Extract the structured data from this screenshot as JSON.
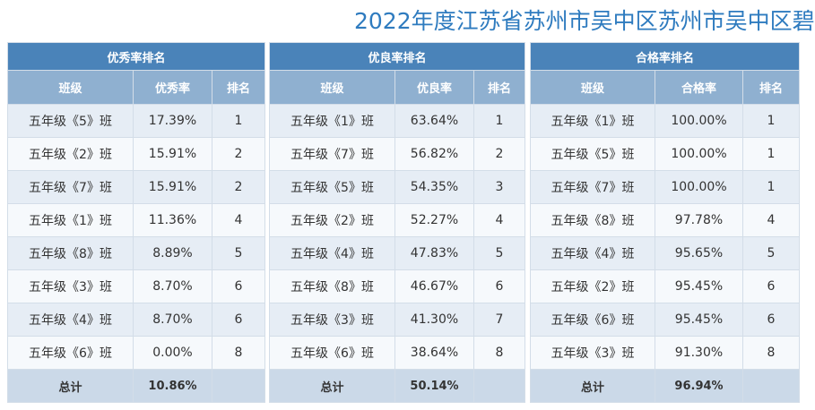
{
  "title": "2022年度江苏省苏州市吴中区苏州市吴中区碧",
  "tables": [
    {
      "header": "优秀率排名",
      "columns": [
        "班级",
        "优秀率",
        "排名"
      ],
      "rows": [
        [
          "五年级《5》班",
          "17.39%",
          "1"
        ],
        [
          "五年级《2》班",
          "15.91%",
          "2"
        ],
        [
          "五年级《7》班",
          "15.91%",
          "2"
        ],
        [
          "五年级《1》班",
          "11.36%",
          "4"
        ],
        [
          "五年级《8》班",
          "8.89%",
          "5"
        ],
        [
          "五年级《3》班",
          "8.70%",
          "6"
        ],
        [
          "五年级《4》班",
          "8.70%",
          "6"
        ],
        [
          "五年级《6》班",
          "0.00%",
          "8"
        ]
      ],
      "total": [
        "总计",
        "10.86%",
        ""
      ]
    },
    {
      "header": "优良率排名",
      "columns": [
        "班级",
        "优良率",
        "排名"
      ],
      "rows": [
        [
          "五年级《1》班",
          "63.64%",
          "1"
        ],
        [
          "五年级《7》班",
          "56.82%",
          "2"
        ],
        [
          "五年级《5》班",
          "54.35%",
          "3"
        ],
        [
          "五年级《2》班",
          "52.27%",
          "4"
        ],
        [
          "五年级《4》班",
          "47.83%",
          "5"
        ],
        [
          "五年级《8》班",
          "46.67%",
          "6"
        ],
        [
          "五年级《3》班",
          "41.30%",
          "7"
        ],
        [
          "五年级《6》班",
          "38.64%",
          "8"
        ]
      ],
      "total": [
        "总计",
        "50.14%",
        ""
      ]
    },
    {
      "header": "合格率排名",
      "columns": [
        "班级",
        "合格率",
        "排名"
      ],
      "rows": [
        [
          "五年级《1》班",
          "100.00%",
          "1"
        ],
        [
          "五年级《5》班",
          "100.00%",
          "1"
        ],
        [
          "五年级《7》班",
          "100.00%",
          "1"
        ],
        [
          "五年级《8》班",
          "97.78%",
          "4"
        ],
        [
          "五年级《4》班",
          "95.65%",
          "5"
        ],
        [
          "五年级《2》班",
          "95.45%",
          "6"
        ],
        [
          "五年级《6》班",
          "95.45%",
          "6"
        ],
        [
          "五年级《3》班",
          "91.30%",
          "8"
        ]
      ],
      "total": [
        "总计",
        "96.94%",
        ""
      ]
    }
  ]
}
